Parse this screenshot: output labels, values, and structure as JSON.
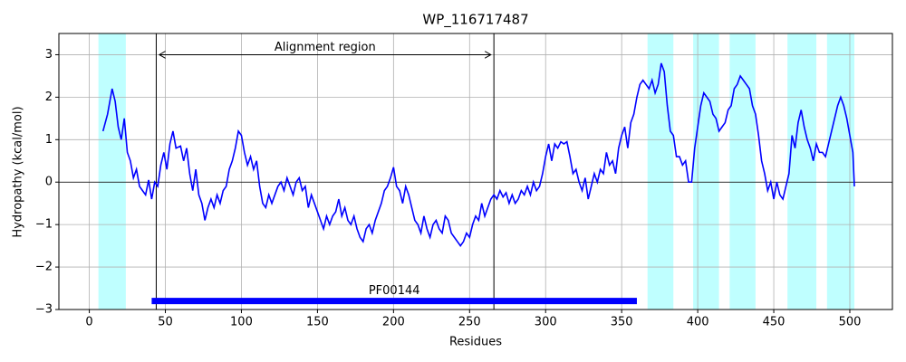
{
  "chart_data": {
    "type": "line",
    "title": "WP_116717487",
    "xlabel": "Residues",
    "ylabel": "Hydropathy (kcal/mol)",
    "xlim": [
      -20,
      528
    ],
    "ylim": [
      -3,
      3.5
    ],
    "xticks": [
      0,
      50,
      100,
      150,
      200,
      250,
      300,
      350,
      400,
      450,
      500
    ],
    "yticks": [
      {
        "value": -3,
        "label": "−3"
      },
      {
        "value": -2,
        "label": "−2"
      },
      {
        "value": -1,
        "label": "−1"
      },
      0,
      1,
      2,
      3
    ],
    "grid": true,
    "highlight_spans": [
      [
        6,
        24
      ],
      [
        367,
        384
      ],
      [
        397,
        414
      ],
      [
        421,
        438
      ],
      [
        459,
        478
      ],
      [
        485,
        503
      ]
    ],
    "highlight_color": "#bfffff",
    "vlines": [
      44,
      266
    ],
    "hline": 0,
    "annotation": {
      "text": "Alignment region",
      "x": [
        46,
        264
      ],
      "y": 3
    },
    "domain": {
      "label": "PF00144",
      "start": 41,
      "end": 360,
      "y": -2.8,
      "color": "#0000ff"
    },
    "series": [
      {
        "name": "Hydropathy",
        "color": "#0000ff",
        "x": [
          9,
          12,
          14,
          15,
          17,
          19,
          21,
          23,
          25,
          27,
          29,
          31,
          33,
          35,
          37,
          39,
          41,
          43,
          45,
          47,
          49,
          51,
          53,
          55,
          57,
          60,
          62,
          64,
          66,
          68,
          70,
          72,
          74,
          76,
          78,
          80,
          82,
          84,
          86,
          88,
          90,
          92,
          94,
          96,
          98,
          100,
          102,
          104,
          106,
          108,
          110,
          112,
          114,
          116,
          118,
          120,
          122,
          124,
          126,
          128,
          130,
          132,
          134,
          136,
          138,
          140,
          142,
          144,
          146,
          148,
          150,
          152,
          154,
          156,
          158,
          160,
          162,
          164,
          166,
          168,
          170,
          172,
          174,
          176,
          178,
          180,
          182,
          184,
          186,
          188,
          190,
          192,
          194,
          196,
          198,
          200,
          202,
          204,
          206,
          208,
          210,
          212,
          214,
          216,
          218,
          220,
          222,
          224,
          226,
          228,
          230,
          232,
          234,
          236,
          238,
          240,
          242,
          244,
          246,
          248,
          250,
          252,
          254,
          256,
          258,
          260,
          262,
          264,
          266,
          268,
          270,
          272,
          274,
          276,
          278,
          280,
          282,
          284,
          286,
          288,
          290,
          292,
          294,
          296,
          298,
          300,
          302,
          304,
          306,
          308,
          310,
          312,
          314,
          316,
          318,
          320,
          322,
          324,
          326,
          328,
          330,
          332,
          334,
          336,
          338,
          340,
          342,
          344,
          346,
          348,
          350,
          352,
          354,
          356,
          358,
          360,
          362,
          364,
          366,
          368,
          370,
          372,
          374,
          376,
          378,
          380,
          382,
          384,
          386,
          388,
          390,
          392,
          394,
          396,
          398,
          400,
          402,
          404,
          406,
          408,
          410,
          412,
          414,
          416,
          418,
          420,
          422,
          424,
          426,
          428,
          430,
          432,
          434,
          436,
          438,
          440,
          442,
          444,
          446,
          448,
          450,
          452,
          454,
          456,
          458,
          460,
          462,
          464,
          466,
          468,
          470,
          472,
          474,
          476,
          478,
          480,
          482,
          484,
          486,
          488,
          490,
          492,
          494,
          496,
          498,
          500,
          502,
          503
        ],
        "values": [
          1.2,
          1.6,
          2.0,
          2.2,
          1.9,
          1.3,
          1.0,
          1.5,
          0.7,
          0.5,
          0.1,
          0.3,
          -0.1,
          -0.2,
          -0.3,
          0.05,
          -0.4,
          0.0,
          -0.1,
          0.4,
          0.7,
          0.3,
          0.9,
          1.2,
          0.8,
          0.85,
          0.5,
          0.8,
          0.2,
          -0.2,
          0.3,
          -0.3,
          -0.5,
          -0.9,
          -0.6,
          -0.4,
          -0.6,
          -0.3,
          -0.5,
          -0.2,
          -0.1,
          0.3,
          0.5,
          0.8,
          1.2,
          1.1,
          0.7,
          0.4,
          0.6,
          0.3,
          0.5,
          -0.1,
          -0.5,
          -0.6,
          -0.3,
          -0.5,
          -0.3,
          -0.1,
          0.0,
          -0.2,
          0.1,
          -0.1,
          -0.3,
          0.0,
          0.1,
          -0.2,
          -0.1,
          -0.6,
          -0.3,
          -0.5,
          -0.7,
          -0.9,
          -1.1,
          -0.8,
          -1.0,
          -0.8,
          -0.7,
          -0.4,
          -0.8,
          -0.6,
          -0.9,
          -1.0,
          -0.8,
          -1.1,
          -1.3,
          -1.4,
          -1.1,
          -1.0,
          -1.2,
          -0.9,
          -0.7,
          -0.5,
          -0.2,
          -0.1,
          0.1,
          0.35,
          -0.1,
          -0.2,
          -0.5,
          -0.1,
          -0.3,
          -0.6,
          -0.9,
          -1.0,
          -1.2,
          -0.8,
          -1.1,
          -1.3,
          -1.0,
          -0.9,
          -1.1,
          -1.2,
          -0.8,
          -0.9,
          -1.2,
          -1.3,
          -1.4,
          -1.5,
          -1.4,
          -1.2,
          -1.3,
          -1.0,
          -0.8,
          -0.9,
          -0.5,
          -0.8,
          -0.6,
          -0.4,
          -0.3,
          -0.4,
          -0.2,
          -0.35,
          -0.25,
          -0.5,
          -0.3,
          -0.5,
          -0.4,
          -0.2,
          -0.3,
          -0.1,
          -0.3,
          0.0,
          -0.2,
          -0.1,
          0.2,
          0.6,
          0.9,
          0.5,
          0.9,
          0.8,
          0.95,
          0.9,
          0.95,
          0.6,
          0.2,
          0.3,
          0.0,
          -0.2,
          0.1,
          -0.4,
          -0.1,
          0.2,
          0.0,
          0.3,
          0.2,
          0.7,
          0.4,
          0.5,
          0.2,
          0.8,
          1.1,
          1.3,
          0.8,
          1.4,
          1.6,
          2.0,
          2.3,
          2.4,
          2.3,
          2.2,
          2.4,
          2.1,
          2.3,
          2.8,
          2.6,
          1.8,
          1.2,
          1.1,
          0.6,
          0.6,
          0.4,
          0.5,
          0.0,
          0.0,
          0.8,
          1.3,
          1.8,
          2.1,
          2.0,
          1.9,
          1.6,
          1.5,
          1.2,
          1.3,
          1.4,
          1.7,
          1.8,
          2.2,
          2.3,
          2.5,
          2.4,
          2.3,
          2.2,
          1.8,
          1.6,
          1.1,
          0.5,
          0.2,
          -0.2,
          0.0,
          -0.4,
          0.0,
          -0.3,
          -0.4,
          -0.1,
          0.2,
          1.1,
          0.8,
          1.4,
          1.7,
          1.3,
          1.0,
          0.8,
          0.5,
          0.9,
          0.7,
          0.7,
          0.6,
          0.9,
          1.2,
          1.5,
          1.8,
          2.0,
          1.8,
          1.5,
          1.1,
          0.7,
          -0.1
        ]
      }
    ]
  }
}
